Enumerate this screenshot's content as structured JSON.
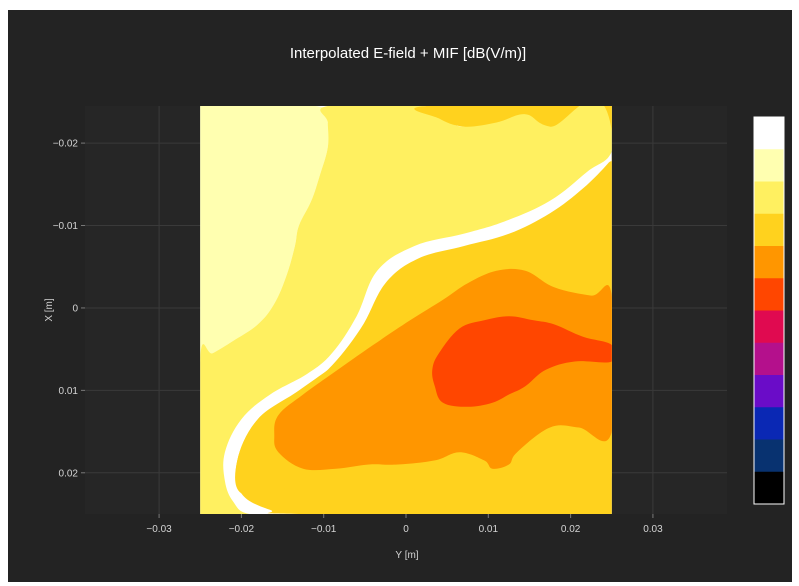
{
  "chart_data": {
    "type": "contour",
    "title": "Interpolated E-field + MIF [dB(V/m)]",
    "xlabel": "Y [m]",
    "ylabel": "X [m]",
    "xlim": [
      -0.039,
      0.039
    ],
    "ylim": [
      -0.0245,
      0.025
    ],
    "y_reversed": true,
    "grid": true,
    "x_ticks": [
      {
        "value": -0.03,
        "label": "−0.03"
      },
      {
        "value": -0.02,
        "label": "−0.02"
      },
      {
        "value": -0.01,
        "label": "−0.01"
      },
      {
        "value": 0,
        "label": "0"
      },
      {
        "value": 0.01,
        "label": "0.01"
      },
      {
        "value": 0.02,
        "label": "0.02"
      },
      {
        "value": 0.03,
        "label": "0.03"
      }
    ],
    "y_ticks": [
      {
        "value": -0.02,
        "label": "−0.02"
      },
      {
        "value": -0.01,
        "label": "−0.01"
      },
      {
        "value": 0,
        "label": "0"
      },
      {
        "value": 0.01,
        "label": "0.01"
      },
      {
        "value": 0.02,
        "label": "0.02"
      }
    ],
    "data_extent": {
      "y_min": -0.025,
      "y_max": 0.025,
      "x_min": -0.0245,
      "x_max": 0.025
    },
    "colorscale": [
      "#ffffff",
      "#ffffb0",
      "#fff060",
      "#ffd21e",
      "#ff9600",
      "#ff4600",
      "#e00a50",
      "#b4108c",
      "#6a0cc8",
      "#0a28b4",
      "#083270",
      "#000000"
    ],
    "levels": [
      {
        "name": "level-1",
        "color": "#ffffb0",
        "points": [
          [
            -0.025,
            -0.0245
          ],
          [
            -0.011,
            -0.0245
          ],
          [
            -0.0095,
            -0.0225
          ],
          [
            -0.0095,
            -0.0195
          ],
          [
            -0.0105,
            -0.016
          ],
          [
            -0.0115,
            -0.013
          ],
          [
            -0.013,
            -0.01
          ],
          [
            -0.0135,
            -0.0075
          ],
          [
            -0.0145,
            -0.004
          ],
          [
            -0.016,
            -0.0005
          ],
          [
            -0.018,
            0.002
          ],
          [
            -0.021,
            0.004
          ],
          [
            -0.0235,
            0.0055
          ],
          [
            -0.025,
            0.006
          ]
        ]
      },
      {
        "name": "level-2",
        "color": "#fff060",
        "points": [
          [
            -0.013,
            0.025
          ],
          [
            -0.019,
            0.025
          ],
          [
            -0.021,
            0.0235
          ],
          [
            -0.022,
            0.021
          ],
          [
            -0.022,
            0.0175
          ],
          [
            -0.02,
            0.0135
          ],
          [
            -0.0165,
            0.0105
          ],
          [
            -0.012,
            0.008
          ],
          [
            -0.009,
            0.0055
          ],
          [
            -0.006,
            0.001
          ],
          [
            -0.0035,
            -0.0045
          ],
          [
            0.001,
            -0.0075
          ],
          [
            0.007,
            -0.009
          ],
          [
            0.012,
            -0.0105
          ],
          [
            0.0175,
            -0.013
          ],
          [
            0.022,
            -0.0165
          ],
          [
            0.025,
            -0.019
          ],
          [
            0.025,
            -0.0245
          ],
          [
            0.014,
            -0.0245
          ],
          [
            0.011,
            -0.023
          ],
          [
            0.007,
            -0.022
          ],
          [
            0.0045,
            -0.023
          ],
          [
            0.002,
            -0.0245
          ],
          [
            -0.0095,
            -0.0245
          ],
          [
            -0.0095,
            -0.0225
          ],
          [
            -0.0095,
            -0.0195
          ],
          [
            -0.0105,
            -0.016
          ],
          [
            -0.0115,
            -0.013
          ],
          [
            -0.013,
            -0.01
          ],
          [
            -0.0135,
            -0.0075
          ],
          [
            -0.0145,
            -0.004
          ],
          [
            -0.016,
            -0.0005
          ],
          [
            -0.018,
            0.002
          ],
          [
            -0.021,
            0.004
          ],
          [
            -0.0235,
            0.0055
          ],
          [
            -0.025,
            0.006
          ],
          [
            -0.025,
            0.025
          ]
        ]
      },
      {
        "name": "level-3",
        "color": "#ffd21e",
        "points": [
          [
            0.0025,
            -0.0245
          ],
          [
            0.004,
            -0.023
          ],
          [
            0.007,
            -0.022
          ],
          [
            0.011,
            -0.0225
          ],
          [
            0.0145,
            -0.0235
          ],
          [
            0.0175,
            -0.022
          ],
          [
            0.025,
            -0.0215
          ],
          [
            0.025,
            0.025
          ],
          [
            0.013,
            0.025
          ],
          [
            0.015,
            0.0225
          ],
          [
            0.018,
            0.0215
          ],
          [
            0.02,
            0.0215
          ],
          [
            0.021,
            0.025
          ],
          [
            -0.013,
            0.025
          ],
          [
            -0.0165,
            0.0245
          ],
          [
            -0.02,
            0.0225
          ],
          [
            -0.0205,
            0.0185
          ],
          [
            -0.018,
            0.0135
          ],
          [
            -0.0135,
            0.0105
          ],
          [
            -0.0095,
            0.0075
          ],
          [
            -0.0055,
            0.0025
          ],
          [
            -0.0025,
            -0.003
          ],
          [
            0.0015,
            -0.006
          ],
          [
            0.007,
            -0.0075
          ],
          [
            0.0125,
            -0.009
          ],
          [
            0.0175,
            -0.0115
          ],
          [
            0.0215,
            -0.0145
          ],
          [
            0.0245,
            -0.0175
          ],
          [
            0.025,
            -0.0185
          ],
          [
            0.025,
            -0.0245
          ]
        ]
      },
      {
        "name": "level-4",
        "color": "#ffd21e",
        "points": [
          [
            -0.02,
            0.0225
          ],
          [
            -0.015,
            0.022
          ],
          [
            -0.011,
            0.02
          ],
          [
            -0.007,
            0.019
          ],
          [
            -0.0025,
            0.0205
          ],
          [
            0.002,
            0.0225
          ],
          [
            0.007,
            0.025
          ],
          [
            0.013,
            0.025
          ],
          [
            0.0135,
            0.0235
          ],
          [
            0.015,
            0.0225
          ],
          [
            0.0185,
            0.0215
          ],
          [
            0.021,
            0.021
          ],
          [
            0.025,
            0.0205
          ],
          [
            0.025,
            -0.001
          ],
          [
            0.021,
            -0.0015
          ],
          [
            0.0175,
            -0.0035
          ],
          [
            0.0135,
            -0.0055
          ],
          [
            0.009,
            -0.0055
          ],
          [
            0.0055,
            -0.004
          ],
          [
            0.0015,
            -0.0015
          ],
          [
            -0.0025,
            0.0015
          ],
          [
            -0.0075,
            0.006
          ],
          [
            -0.013,
            0.01
          ],
          [
            -0.018,
            0.0135
          ],
          [
            -0.0205,
            0.0185
          ]
        ]
      },
      {
        "name": "level-5",
        "color": "#ff9600",
        "points": [
          [
            -0.0155,
            0.0175
          ],
          [
            -0.0125,
            0.0195
          ],
          [
            -0.0085,
            0.0195
          ],
          [
            -0.0045,
            0.019
          ],
          [
            -0.001,
            0.019
          ],
          [
            0.0035,
            0.0185
          ],
          [
            0.0065,
            0.0175
          ],
          [
            0.0095,
            0.0185
          ],
          [
            0.0105,
            0.0195
          ],
          [
            0.0125,
            0.019
          ],
          [
            0.0135,
            0.0175
          ],
          [
            0.0175,
            0.0145
          ],
          [
            0.021,
            0.0145
          ],
          [
            0.025,
            0.015
          ],
          [
            0.025,
            -0.0015
          ],
          [
            0.0225,
            -0.0015
          ],
          [
            0.018,
            -0.0025
          ],
          [
            0.0145,
            -0.0045
          ],
          [
            0.011,
            -0.0045
          ],
          [
            0.0075,
            -0.003
          ],
          [
            0.0045,
            -0.001
          ],
          [
            0.0005,
            0.0015
          ],
          [
            -0.004,
            0.0045
          ],
          [
            -0.009,
            0.008
          ],
          [
            -0.0125,
            0.0105
          ],
          [
            -0.0155,
            0.013
          ],
          [
            -0.016,
            0.0155
          ]
        ]
      },
      {
        "name": "level-6",
        "color": "#ff4600",
        "points": [
          [
            0.0035,
            0.0095
          ],
          [
            0.0045,
            0.0115
          ],
          [
            0.0075,
            0.012
          ],
          [
            0.0105,
            0.0115
          ],
          [
            0.0125,
            0.0105
          ],
          [
            0.0145,
            0.0095
          ],
          [
            0.017,
            0.0075
          ],
          [
            0.0205,
            0.0065
          ],
          [
            0.025,
            0.0065
          ],
          [
            0.025,
            0.0045
          ],
          [
            0.0215,
            0.0035
          ],
          [
            0.018,
            0.002
          ],
          [
            0.0155,
            0.0015
          ],
          [
            0.0125,
            0.001
          ],
          [
            0.0095,
            0.0015
          ],
          [
            0.0065,
            0.0025
          ],
          [
            0.004,
            0.0055
          ],
          [
            0.0032,
            0.0075
          ]
        ]
      }
    ]
  }
}
